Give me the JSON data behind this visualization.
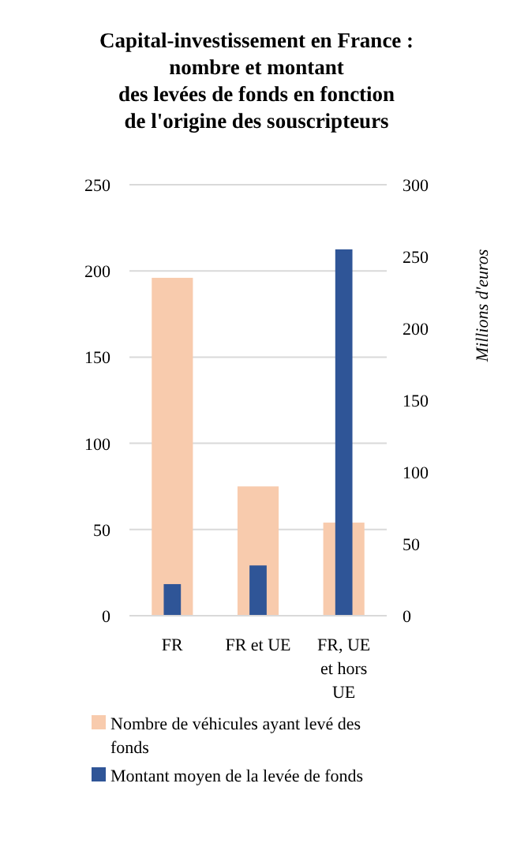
{
  "chart_data": {
    "type": "bar",
    "title": "Capital-investissement en France :\nnombre et montant\ndes levées de fonds en fonction\nde l'origine des souscripteurs",
    "y2label": "Millions d'euros",
    "categories": [
      "FR",
      "FR et UE",
      "FR, UE et hors UE"
    ],
    "series": [
      {
        "name": "Nombre de véhicules ayant levé des fonds",
        "color": "#f8cbad",
        "values": [
          196,
          75,
          54
        ]
      },
      {
        "name": "Montant moyen de la levée de fonds",
        "color": "#2f5597",
        "values": [
          22,
          35,
          255
        ],
        "axis": "y2"
      }
    ],
    "ylim": [
      0,
      250
    ],
    "yticks": [
      0,
      50,
      100,
      150,
      200,
      250
    ],
    "y2lim": [
      0,
      300
    ],
    "y2ticks": [
      0,
      50,
      100,
      150,
      200,
      250,
      300
    ],
    "grid": "y",
    "legend": "bottom"
  }
}
